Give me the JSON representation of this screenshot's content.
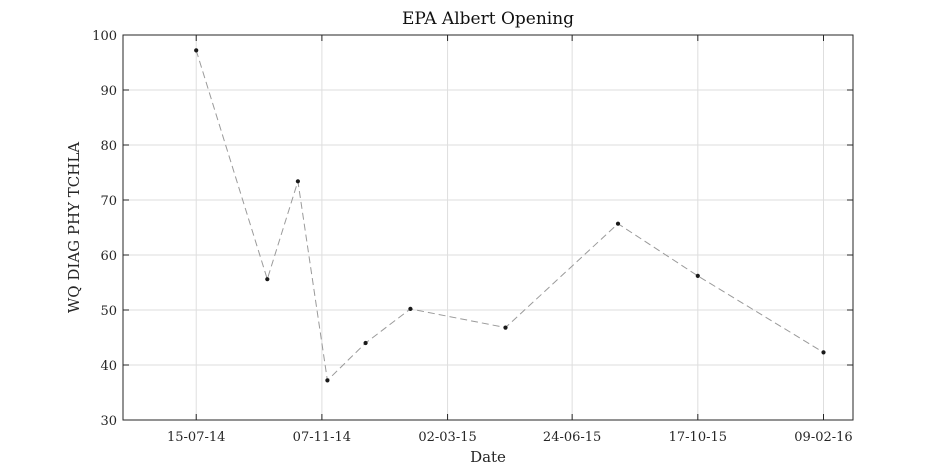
{
  "chart_data": {
    "type": "line",
    "title": "EPA Albert Opening",
    "xlabel": "Date",
    "ylabel": "WQ DIAG PHY TCHLA",
    "xlim": [
      "2014-05-09",
      "2016-03-07"
    ],
    "ylim": [
      30,
      100
    ],
    "x_ticks": [
      "2014-07-15",
      "2014-11-07",
      "2015-03-02",
      "2015-06-24",
      "2015-10-17",
      "2016-02-09"
    ],
    "x_tick_labels": [
      "15-07-14",
      "07-11-14",
      "02-03-15",
      "24-06-15",
      "17-10-15",
      "09-02-16"
    ],
    "y_ticks": [
      30,
      40,
      50,
      60,
      70,
      80,
      90,
      100
    ],
    "y_tick_labels": [
      "30",
      "40",
      "50",
      "60",
      "70",
      "80",
      "90",
      "100"
    ],
    "grid": true,
    "series": [
      {
        "color": "#9a9a9a",
        "marker_color": "#1a1a1a",
        "line_style": "dashed",
        "x": [
          "2014-07-15",
          "2014-09-18",
          "2014-10-16",
          "2014-11-12",
          "2014-12-17",
          "2015-01-27",
          "2015-04-24",
          "2015-08-05",
          "2015-10-17",
          "2016-02-09"
        ],
        "y": [
          97.2,
          55.6,
          73.4,
          37.2,
          44.0,
          50.2,
          46.8,
          65.7,
          56.2,
          42.3
        ]
      }
    ]
  }
}
